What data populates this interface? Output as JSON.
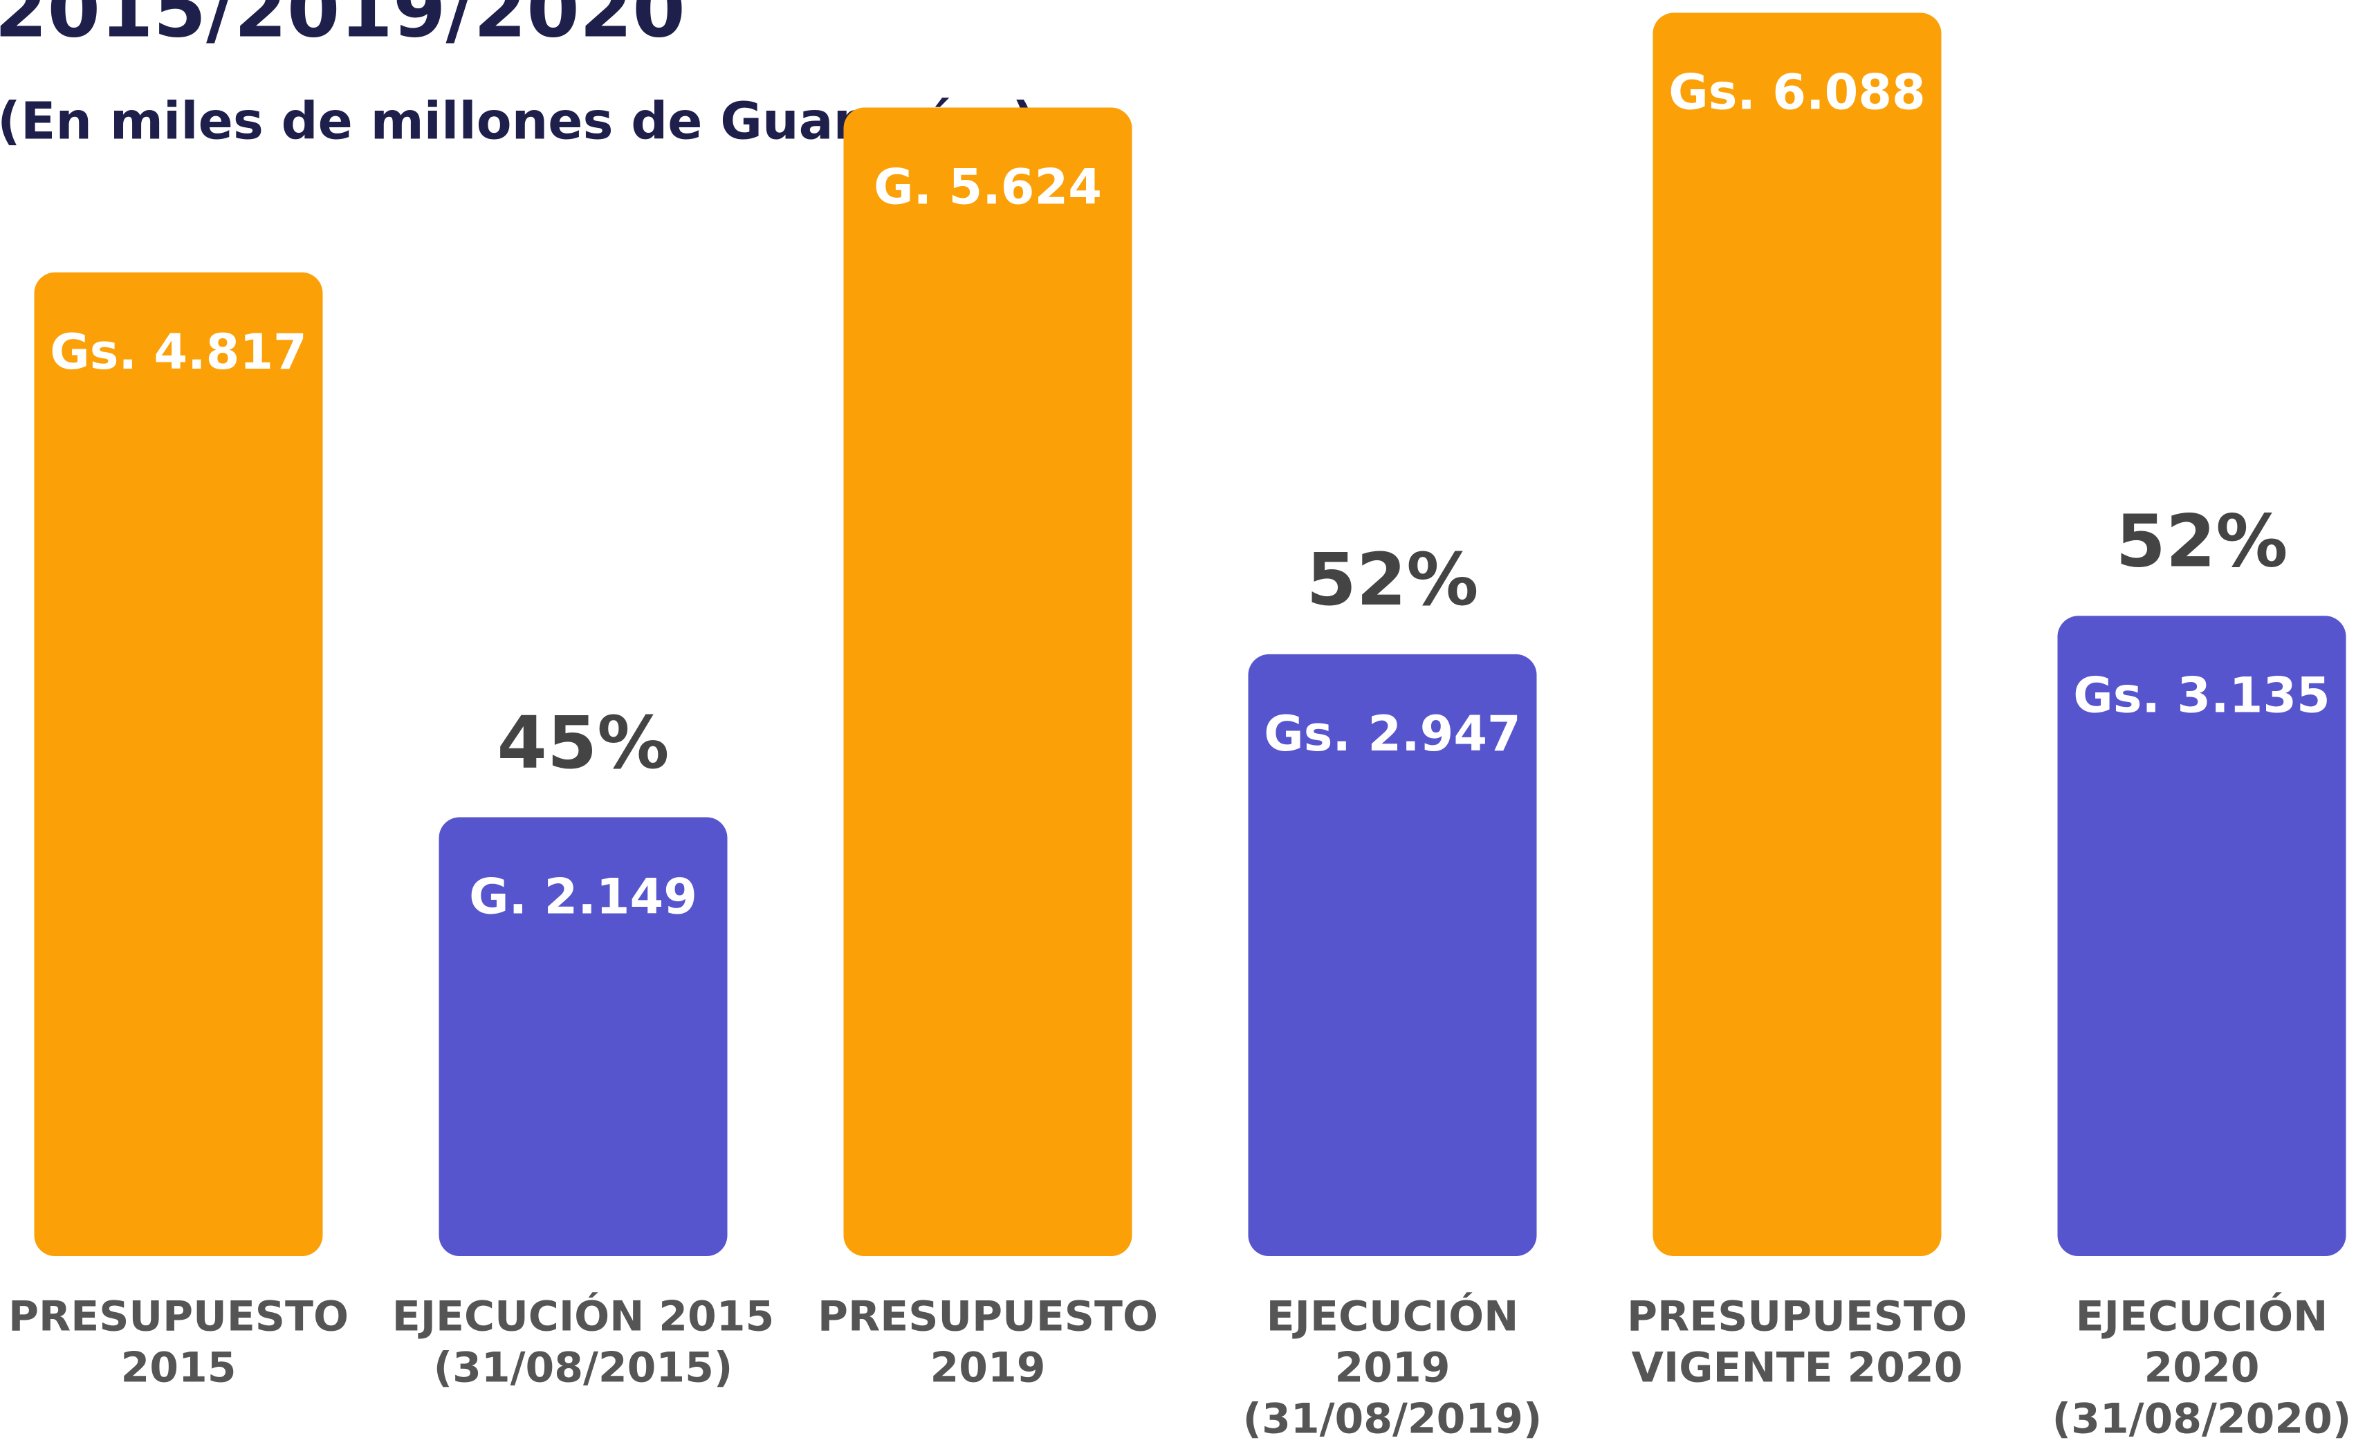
{
  "chart_data": {
    "type": "bar",
    "title": "2015/2019/2020",
    "subtitle": "(En miles de millones de Guaraníes)",
    "categories": [
      [
        "PRESUPUESTO",
        "2015"
      ],
      [
        "EJECUCIÓN 2015",
        "(31/08/2015)"
      ],
      [
        "PRESUPUESTO",
        "2019"
      ],
      [
        "EJECUCIÓN",
        "2019",
        "(31/08/2019)"
      ],
      [
        "PRESUPUESTO",
        "VIGENTE 2020"
      ],
      [
        "EJECUCIÓN",
        "2020",
        "(31/08/2020)"
      ]
    ],
    "values": [
      4817,
      2149,
      5624,
      2947,
      6088,
      3135
    ],
    "value_labels": [
      "Gs. 4.817",
      "G. 2.149",
      "G. 5.624",
      "Gs. 2.947",
      "Gs. 6.088",
      "Gs. 3.135"
    ],
    "annotations": [
      null,
      "45%",
      null,
      "52%",
      null,
      "52%"
    ],
    "colors": [
      "#fba007",
      "#5655cd",
      "#fba007",
      "#5655cd",
      "#fba007",
      "#5655cd"
    ],
    "ylim": [
      0,
      6100
    ]
  }
}
